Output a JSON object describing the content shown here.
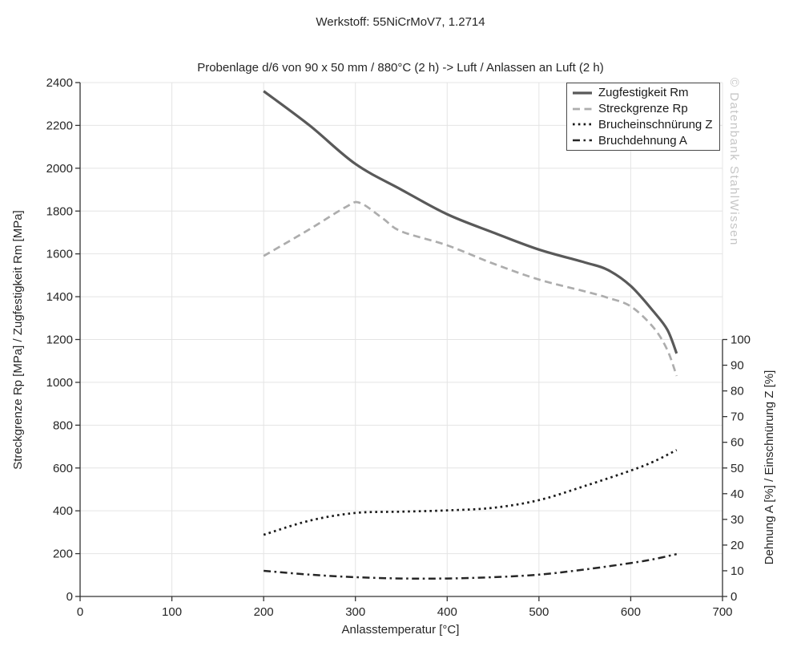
{
  "title": "Werkstoff: 55NiCrMoV7, 1.2714",
  "subtitle": "Probenlage d/6 von 90 x 50 mm / 880°C (2 h) -> Luft / Anlassen an Luft (2 h)",
  "watermark": "© Datenbank StahlWissen",
  "colors": {
    "axis": "#333333",
    "grid": "#e4e4e4",
    "tick_text": "#262626",
    "watermark": "#c6c6c6",
    "legend_border": "#4a4a4a"
  },
  "chart_data": {
    "type": "line",
    "xlabel": "Anlasstemperatur [°C]",
    "ylabel_left": "Streckgrenze Rp [MPa] / Zugfestigkeit Rm [MPa]",
    "ylabel_right": "Dehnung A [%] / Einschnürung Z [%]",
    "xlim": [
      0,
      700
    ],
    "xtick_step": 100,
    "ylim_left": [
      0,
      2400
    ],
    "ytick_step_left": 200,
    "ylim_right": [
      0,
      100
    ],
    "ytick_step_right": 10,
    "right_axis_span_in_left_units": [
      0,
      1200
    ],
    "grid": true,
    "legend_position": "top-right",
    "series": [
      {
        "name": "Zugfestigkeit Rm",
        "axis": "left",
        "style": "solid",
        "color": "#595959",
        "width": 3.2,
        "x": [
          200,
          250,
          300,
          350,
          400,
          450,
          500,
          550,
          575,
          600,
          625,
          640,
          650
        ],
        "values": [
          2360,
          2200,
          2020,
          1900,
          1785,
          1700,
          1620,
          1560,
          1525,
          1450,
          1330,
          1245,
          1135
        ]
      },
      {
        "name": "Streckgrenze Rp",
        "axis": "left",
        "style": "dashed",
        "color": "#adadad",
        "width": 2.7,
        "x": [
          200,
          250,
          290,
          305,
          330,
          350,
          400,
          450,
          500,
          550,
          575,
          600,
          625,
          640,
          650
        ],
        "values": [
          1590,
          1715,
          1820,
          1838,
          1765,
          1705,
          1640,
          1555,
          1480,
          1425,
          1395,
          1355,
          1255,
          1150,
          1030
        ]
      },
      {
        "name": "Brucheinschnürung Z",
        "axis": "right",
        "style": "dotted",
        "color": "#1a1a1a",
        "width": 2.7,
        "x": [
          200,
          250,
          300,
          350,
          400,
          450,
          500,
          550,
          600,
          625,
          650
        ],
        "values": [
          24,
          29.5,
          32.5,
          33,
          33.5,
          34.5,
          37.5,
          43,
          49,
          52.5,
          57
        ]
      },
      {
        "name": "Bruchdehnung A",
        "axis": "right",
        "style": "dashdot",
        "color": "#262626",
        "width": 2.5,
        "x": [
          200,
          250,
          300,
          350,
          400,
          450,
          500,
          550,
          600,
          625,
          650
        ],
        "values": [
          10,
          8.5,
          7.5,
          7,
          7,
          7.5,
          8.5,
          10.5,
          13,
          14.5,
          16.5
        ]
      }
    ]
  }
}
